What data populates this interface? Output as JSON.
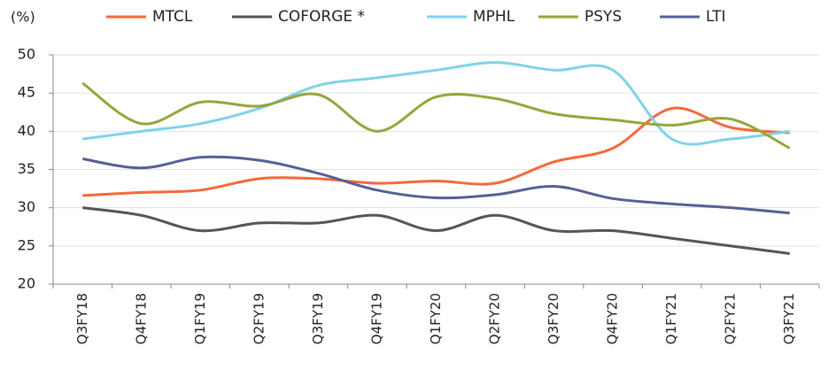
{
  "chart_data": {
    "type": "line",
    "y_label": "(%)",
    "categories": [
      "Q3FY18",
      "Q4FY18",
      "Q1FY19",
      "Q2FY19",
      "Q3FY19",
      "Q4FY19",
      "Q1FY20",
      "Q2FY20",
      "Q3FY20",
      "Q4FY20",
      "Q1FY21",
      "Q2FY21",
      "Q3FY21"
    ],
    "series": [
      {
        "name": "MTCL",
        "color": "#f4693a",
        "values": [
          31.6,
          32,
          32.3,
          33.8,
          33.8,
          33.2,
          33.5,
          33.2,
          36,
          37.8,
          43,
          40.5,
          39.8
        ]
      },
      {
        "name": "COFORGE *",
        "color": "#555555",
        "values": [
          30,
          29,
          27,
          28,
          28,
          29,
          27,
          29,
          27,
          27,
          26,
          25,
          24
        ]
      },
      {
        "name": "MPHL",
        "color": "#7fd3e8",
        "values": [
          39,
          40,
          41,
          43,
          46,
          47,
          48,
          49,
          48,
          48,
          39,
          39,
          40
        ]
      },
      {
        "name": "PSYS",
        "color": "#9aa33a",
        "values": [
          46.3,
          41,
          43.8,
          43.3,
          44.8,
          40,
          44.5,
          44.3,
          42.3,
          41.5,
          40.8,
          41.6,
          37.8
        ]
      },
      {
        "name": "LTI",
        "color": "#565f95",
        "values": [
          36.4,
          35.2,
          36.6,
          36.2,
          34.5,
          32.3,
          31.3,
          31.7,
          32.8,
          31.2,
          30.5,
          30,
          29.3
        ]
      }
    ],
    "ylim": [
      20,
      50
    ],
    "yticks": [
      20,
      25,
      30,
      35,
      40,
      45,
      50
    ],
    "grid": true,
    "legend": "top"
  }
}
